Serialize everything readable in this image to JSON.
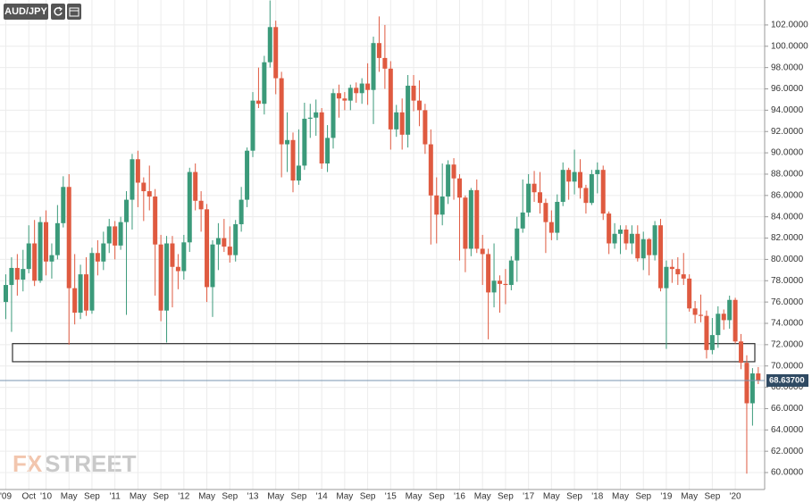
{
  "chart_data": {
    "type": "candlestick",
    "title": "AUD/JPY",
    "watermark": {
      "part1": "FX",
      "part2": "STREET"
    },
    "categories": [
      "'09",
      null,
      null,
      null,
      "Oct",
      null,
      null,
      "'10",
      null,
      null,
      null,
      "May",
      null,
      null,
      null,
      "Sep",
      null,
      null,
      null,
      "'11",
      null,
      null,
      null,
      "May",
      null,
      null,
      null,
      "Sep",
      null,
      null,
      null,
      "'12",
      null,
      null,
      null,
      "May",
      null,
      null,
      null,
      "Sep",
      null,
      null,
      null,
      "'13",
      null,
      null,
      null,
      "May",
      null,
      null,
      null,
      "Sep",
      null,
      null,
      null,
      "'14",
      null,
      null,
      null,
      "May",
      null,
      null,
      null,
      "Sep",
      null,
      null,
      null,
      "'15",
      null,
      null,
      null,
      "May",
      null,
      null,
      null,
      "Sep",
      null,
      null,
      null,
      "'16",
      null,
      null,
      null,
      "May",
      null,
      null,
      null,
      "Sep",
      null,
      null,
      null,
      "'17",
      null,
      null,
      null,
      "May",
      null,
      null,
      null,
      "Sep",
      null,
      null,
      null,
      "'18",
      null,
      null,
      null,
      "May",
      null,
      null,
      null,
      "Sep",
      null,
      null,
      null,
      "'19",
      null,
      null,
      null,
      "May",
      null,
      null,
      null,
      "Sep",
      null,
      null,
      null,
      "'20",
      null,
      null,
      null,
      null
    ],
    "open": [
      76.0,
      77.6,
      79.2,
      78.1,
      79.1,
      81.5,
      78.0,
      83.5,
      79.8,
      80.4,
      83.4,
      86.8,
      77.3,
      75.0,
      78.6,
      75.2,
      80.6,
      79.8,
      81.5,
      83.1,
      81.3,
      83.5,
      85.6,
      89.4,
      87.2,
      86.4,
      85.9,
      81.4,
      75.2,
      81.5,
      79.3,
      78.9,
      81.6,
      88.2,
      85.5,
      84.7,
      77.4,
      81.4,
      82.0,
      81.2,
      80.4,
      83.3,
      85.6,
      90.2,
      94.9,
      94.6,
      98.5,
      101.8,
      97.0,
      90.8,
      91.2,
      87.4,
      88.8,
      93.2,
      93.3,
      93.8,
      89.0,
      91.4,
      95.6,
      95.1,
      94.9,
      96.1,
      95.6,
      96.5,
      95.9,
      100.3,
      98.9,
      97.9,
      92.2,
      93.8,
      91.7,
      96.3,
      94.9,
      94.0,
      90.8,
      86.0,
      84.2,
      85.9,
      88.9,
      87.6,
      85.8,
      81.0,
      86.5,
      81.0,
      80.5,
      76.9,
      78.0,
      77.7,
      77.6,
      79.9,
      82.9,
      84.4,
      87.1,
      86.3,
      85.3,
      83.5,
      82.5,
      85.4,
      88.4,
      87.3,
      88.2,
      86.7,
      85.3,
      88.0,
      88.4,
      84.3,
      81.5,
      82.4,
      82.8,
      81.5,
      82.4,
      80.1,
      81.9,
      80.4,
      83.2,
      77.3,
      79.3,
      79.1,
      78.6,
      78.2,
      75.4,
      74.8,
      74.7,
      71.5,
      72.9,
      74.9,
      74.3,
      76.2,
      72.3,
      70.3,
      66.5,
      69.3
    ],
    "high": [
      78.6,
      80.2,
      80.5,
      80.9,
      83.2,
      83.7,
      84.0,
      84.6,
      81.5,
      85.1,
      87.8,
      88.0,
      80.5,
      79.5,
      80.2,
      81.1,
      81.8,
      82.6,
      83.8,
      83.6,
      84.0,
      86.4,
      89.9,
      90.2,
      87.7,
      88.8,
      86.6,
      82.3,
      82.2,
      82.2,
      80.5,
      82.3,
      88.6,
      89.0,
      86.4,
      85.2,
      81.8,
      83.4,
      83.8,
      83.1,
      83.7,
      86.8,
      90.5,
      95.7,
      98.0,
      99.1,
      104.3,
      102.4,
      97.6,
      93.8,
      91.9,
      92.2,
      94.7,
      94.6,
      95.0,
      94.2,
      92.6,
      96.0,
      96.4,
      95.7,
      96.4,
      96.6,
      97.0,
      98.4,
      100.9,
      102.8,
      102.0,
      98.6,
      94.5,
      95.1,
      97.3,
      97.3,
      96.8,
      94.6,
      92.2,
      87.7,
      89.0,
      89.3,
      89.5,
      88.0,
      86.0,
      86.7,
      87.5,
      82.3,
      81.0,
      81.5,
      78.5,
      79.1,
      80.3,
      84.0,
      87.5,
      88.0,
      88.3,
      88.2,
      85.7,
      84.6,
      86.1,
      89.1,
      88.6,
      90.3,
      89.4,
      87.0,
      88.4,
      89.1,
      88.8,
      84.5,
      83.4,
      83.2,
      83.2,
      83.2,
      83.2,
      82.6,
      82.0,
      83.6,
      83.8,
      79.9,
      80.0,
      80.2,
      80.6,
      78.6,
      76.1,
      76.7,
      75.2,
      74.5,
      75.6,
      75.3,
      76.6,
      76.4,
      73.0,
      71.0,
      69.8,
      69.9
    ],
    "low": [
      74.4,
      73.2,
      76.6,
      77.0,
      78.7,
      77.5,
      77.8,
      78.5,
      78.2,
      80.0,
      83.0,
      72.0,
      73.9,
      74.4,
      74.7,
      74.9,
      78.5,
      79.0,
      80.6,
      80.0,
      80.9,
      74.8,
      82.8,
      84.9,
      83.6,
      84.6,
      76.6,
      74.2,
      72.2,
      75.5,
      77.2,
      78.1,
      80.7,
      84.6,
      82.6,
      76.0,
      74.6,
      79.0,
      80.7,
      79.7,
      79.8,
      82.6,
      84.9,
      89.6,
      94.2,
      93.6,
      98.0,
      95.5,
      87.7,
      88.2,
      86.3,
      87.0,
      88.4,
      91.4,
      91.6,
      88.5,
      88.2,
      90.4,
      93.3,
      94.0,
      94.0,
      94.7,
      94.6,
      94.5,
      92.7,
      97.6,
      96.0,
      90.3,
      91.5,
      90.3,
      90.5,
      93.9,
      92.5,
      89.9,
      81.4,
      81.5,
      83.2,
      85.2,
      85.6,
      79.9,
      78.8,
      80.3,
      80.6,
      77.6,
      72.5,
      75.5,
      75.0,
      75.8,
      77.1,
      77.9,
      82.5,
      84.0,
      85.4,
      84.3,
      80.6,
      81.8,
      81.8,
      85.0,
      85.6,
      86.1,
      85.7,
      84.3,
      85.1,
      86.2,
      83.7,
      80.5,
      81.0,
      80.5,
      80.9,
      80.5,
      79.8,
      79.0,
      78.5,
      79.9,
      77.0,
      71.6,
      77.8,
      77.6,
      77.6,
      75.1,
      74.0,
      74.1,
      70.7,
      71.1,
      71.7,
      73.4,
      73.5,
      72.1,
      69.7,
      59.9,
      64.4,
      68.3
    ],
    "close": [
      77.6,
      79.2,
      78.1,
      79.1,
      81.5,
      78.0,
      83.5,
      79.8,
      80.4,
      83.4,
      86.8,
      77.3,
      75.0,
      78.6,
      75.2,
      80.6,
      79.8,
      81.5,
      83.1,
      81.3,
      83.5,
      85.6,
      89.4,
      87.2,
      86.4,
      85.9,
      81.4,
      75.2,
      81.5,
      79.3,
      78.9,
      81.6,
      88.2,
      85.5,
      84.7,
      77.4,
      81.4,
      82.0,
      81.2,
      80.4,
      83.3,
      85.6,
      90.2,
      94.9,
      94.6,
      98.5,
      101.8,
      97.0,
      90.8,
      91.2,
      87.4,
      88.8,
      93.2,
      93.3,
      93.8,
      89.0,
      91.4,
      95.6,
      95.1,
      94.9,
      96.1,
      95.6,
      96.5,
      95.9,
      100.3,
      98.9,
      97.9,
      92.2,
      93.8,
      91.7,
      96.3,
      94.9,
      94.0,
      90.8,
      86.0,
      84.2,
      85.9,
      88.9,
      87.6,
      85.8,
      81.0,
      86.5,
      81.0,
      80.5,
      76.9,
      78.0,
      77.7,
      77.6,
      79.9,
      82.9,
      84.4,
      87.1,
      86.3,
      85.3,
      83.5,
      82.5,
      85.4,
      88.4,
      87.3,
      88.2,
      86.7,
      85.3,
      88.0,
      88.4,
      84.3,
      81.5,
      82.4,
      82.8,
      81.5,
      82.4,
      80.1,
      81.9,
      80.4,
      83.2,
      77.3,
      79.3,
      79.1,
      78.6,
      78.2,
      75.4,
      74.8,
      74.7,
      71.5,
      72.9,
      74.9,
      74.3,
      76.2,
      72.3,
      70.3,
      66.5,
      69.3,
      68.637
    ],
    "up_color": "#3b9a7a",
    "down_color": "#df5a40",
    "last_price": {
      "value": 68.637,
      "label": "68.63700"
    },
    "zone": [
      70.4,
      72.1
    ],
    "ylim": [
      58.41,
      104.34
    ],
    "yticks": [
      {
        "value": 60,
        "label": "60.0000"
      },
      {
        "value": 62,
        "label": "62.0000"
      },
      {
        "value": 64,
        "label": "64.0000"
      },
      {
        "value": 66,
        "label": "66.0000"
      },
      {
        "value": 68,
        "label": "68.0000"
      },
      {
        "value": 70,
        "label": "70.0000"
      },
      {
        "value": 72,
        "label": "72.0000"
      },
      {
        "value": 74,
        "label": "74.0000"
      },
      {
        "value": 76,
        "label": "76.0000"
      },
      {
        "value": 78,
        "label": "78.0000"
      },
      {
        "value": 80,
        "label": "80.0000"
      },
      {
        "value": 82,
        "label": "82.0000"
      },
      {
        "value": 84,
        "label": "84.0000"
      },
      {
        "value": 86,
        "label": "86.0000"
      },
      {
        "value": 88,
        "label": "88.0000"
      },
      {
        "value": 90,
        "label": "90.0000"
      },
      {
        "value": 92,
        "label": "92.0000"
      },
      {
        "value": 94,
        "label": "94.0000"
      },
      {
        "value": 96,
        "label": "96.0000"
      },
      {
        "value": 98,
        "label": "98.0000"
      },
      {
        "value": 100,
        "label": "100.0000"
      },
      {
        "value": 102,
        "label": "102.0000"
      }
    ],
    "grid": true
  }
}
